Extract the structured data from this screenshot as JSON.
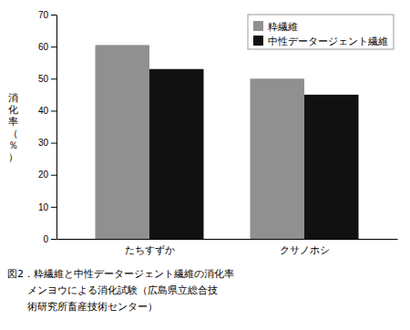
{
  "chart_data": {
    "type": "bar",
    "categories": [
      "たちすずか",
      "クサノホシ"
    ],
    "series": [
      {
        "name": "粋繊維",
        "color": "#909090",
        "values": [
          60.5,
          50.0
        ]
      },
      {
        "name": "中性データージェント繊維",
        "color": "#111111",
        "values": [
          53.0,
          45.0
        ]
      }
    ],
    "ylabel": "消化率（％）",
    "ylim": [
      0,
      70
    ],
    "yticks": [
      0,
      10,
      20,
      30,
      40,
      50,
      60,
      70
    ],
    "legend": "upper right",
    "grid": false,
    "annotations": [
      "図2．粋繊維と中性データージェント繊維の消化率",
      "メンヨウによる消化試験（広島県立総合技",
      "術研究所畜産技術センター）"
    ]
  }
}
